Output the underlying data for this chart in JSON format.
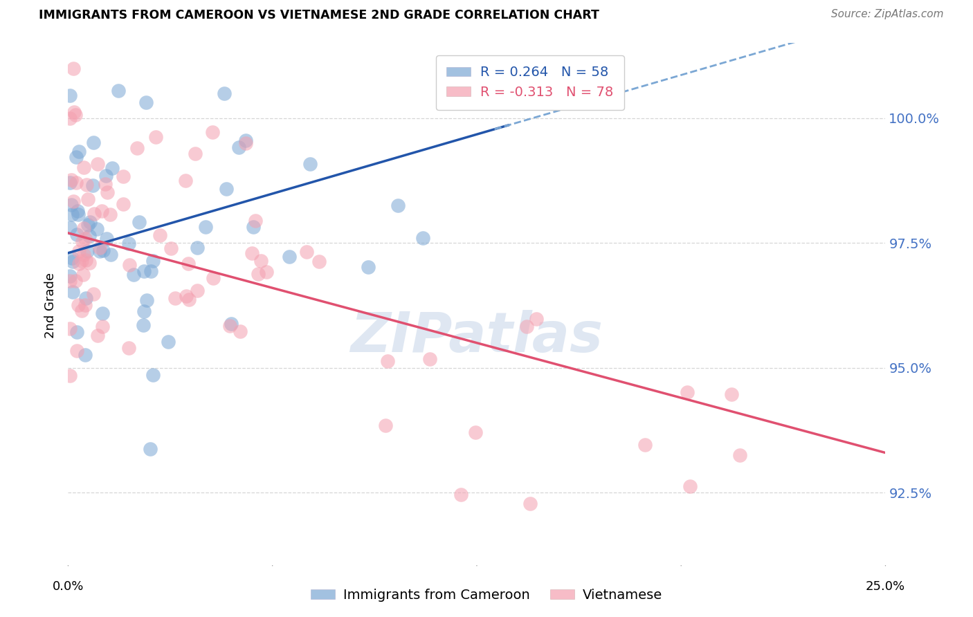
{
  "title": "IMMIGRANTS FROM CAMEROON VS VIETNAMESE 2ND GRADE CORRELATION CHART",
  "source": "Source: ZipAtlas.com",
  "ylabel": "2nd Grade",
  "xlim": [
    0.0,
    25.0
  ],
  "ylim": [
    91.0,
    101.5
  ],
  "yticks": [
    92.5,
    95.0,
    97.5,
    100.0
  ],
  "ytick_labels": [
    "92.5%",
    "95.0%",
    "97.5%",
    "100.0%"
  ],
  "right_axis_color": "#4472C4",
  "blue_color": "#7BA7D4",
  "pink_color": "#F4A0B0",
  "trend_blue_solid_color": "#2255AA",
  "trend_blue_dash_color": "#7BA7D4",
  "trend_pink_color": "#E05070",
  "watermark_color": "#C5D5E8",
  "background_color": "#FFFFFF",
  "grid_color": "#CCCCCC",
  "cam_seed": 12,
  "viet_seed": 7
}
